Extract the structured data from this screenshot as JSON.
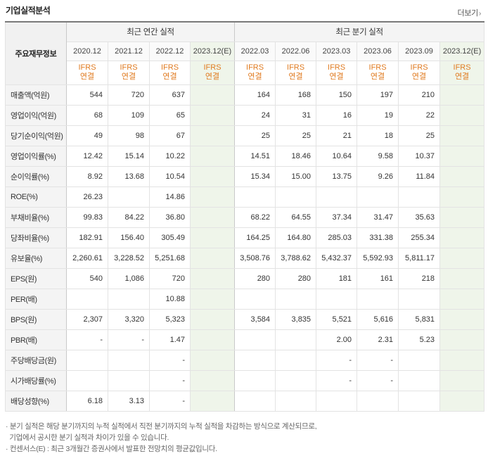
{
  "title": "기업실적분석",
  "more_label": "더보기",
  "header": {
    "label": "주요재무정보",
    "annual_group": "최근 연간 실적",
    "quarter_group": "최근 분기 실적",
    "annual_periods": [
      "2020.12",
      "2021.12",
      "2022.12",
      "2023.12(E)"
    ],
    "quarter_periods": [
      "2022.03",
      "2022.06",
      "2023.03",
      "2023.06",
      "2023.09",
      "2023.12(E)"
    ],
    "std_line1": "IFRS",
    "std_line2": "연결"
  },
  "rows": [
    {
      "name": "매출액(억원)",
      "annual": [
        "544",
        "720",
        "637",
        ""
      ],
      "quarter": [
        "164",
        "168",
        "150",
        "197",
        "210",
        ""
      ]
    },
    {
      "name": "영업이익(억원)",
      "annual": [
        "68",
        "109",
        "65",
        ""
      ],
      "quarter": [
        "24",
        "31",
        "16",
        "19",
        "22",
        ""
      ]
    },
    {
      "name": "당기순이익(억원)",
      "annual": [
        "49",
        "98",
        "67",
        ""
      ],
      "quarter": [
        "25",
        "25",
        "21",
        "18",
        "25",
        ""
      ]
    },
    {
      "name": "영업이익률(%)",
      "annual": [
        "12.42",
        "15.14",
        "10.22",
        ""
      ],
      "quarter": [
        "14.51",
        "18.46",
        "10.64",
        "9.58",
        "10.37",
        ""
      ]
    },
    {
      "name": "순이익률(%)",
      "annual": [
        "8.92",
        "13.68",
        "10.54",
        ""
      ],
      "quarter": [
        "15.34",
        "15.00",
        "13.75",
        "9.26",
        "11.84",
        ""
      ]
    },
    {
      "name": "ROE(%)",
      "annual": [
        "26.23",
        "",
        "14.86",
        ""
      ],
      "quarter": [
        "",
        "",
        "",
        "",
        "",
        ""
      ]
    },
    {
      "name": "부채비율(%)",
      "annual": [
        "99.83",
        "84.22",
        "36.80",
        ""
      ],
      "quarter": [
        "68.22",
        "64.55",
        "37.34",
        "31.47",
        "35.63",
        ""
      ]
    },
    {
      "name": "당좌비율(%)",
      "annual": [
        "182.91",
        "156.40",
        "305.49",
        ""
      ],
      "quarter": [
        "164.25",
        "164.80",
        "285.03",
        "331.38",
        "255.34",
        ""
      ]
    },
    {
      "name": "유보율(%)",
      "annual": [
        "2,260.61",
        "3,228.52",
        "5,251.68",
        ""
      ],
      "quarter": [
        "3,508.76",
        "3,788.62",
        "5,432.37",
        "5,592.93",
        "5,811.17",
        ""
      ]
    },
    {
      "name": "EPS(원)",
      "annual": [
        "540",
        "1,086",
        "720",
        ""
      ],
      "quarter": [
        "280",
        "280",
        "181",
        "161",
        "218",
        ""
      ]
    },
    {
      "name": "PER(배)",
      "annual": [
        "",
        "",
        "10.88",
        ""
      ],
      "quarter": [
        "",
        "",
        "",
        "",
        "",
        ""
      ]
    },
    {
      "name": "BPS(원)",
      "annual": [
        "2,307",
        "3,320",
        "5,323",
        ""
      ],
      "quarter": [
        "3,584",
        "3,835",
        "5,521",
        "5,616",
        "5,831",
        ""
      ]
    },
    {
      "name": "PBR(배)",
      "annual": [
        "-",
        "-",
        "1.47",
        ""
      ],
      "quarter": [
        "",
        "",
        "2.00",
        "2.31",
        "5.23",
        ""
      ]
    },
    {
      "name": "주당배당금(원)",
      "annual": [
        "",
        "",
        "-",
        ""
      ],
      "quarter": [
        "",
        "",
        "-",
        "-",
        "",
        ""
      ]
    },
    {
      "name": "시가배당률(%)",
      "annual": [
        "",
        "",
        "-",
        ""
      ],
      "quarter": [
        "",
        "",
        "-",
        "-",
        "",
        ""
      ]
    },
    {
      "name": "배당성향(%)",
      "annual": [
        "6.18",
        "3.13",
        "-",
        ""
      ],
      "quarter": [
        "",
        "",
        "",
        "",
        "",
        ""
      ]
    }
  ],
  "group_breaks": [
    3,
    6,
    9,
    13
  ],
  "notes": [
    "· 분기 실적은 해당 분기까지의 누적 실적에서 직전 분기까지의 누적 실적을 차감하는 방식으로 계산되므로,",
    "  기업에서 공시한 분기 실적과 차이가 있을 수 있습니다.",
    "· 컨센서스(E) : 최근 3개월간 증권사에서 발표한 전망치의 평균값입니다."
  ],
  "colors": {
    "standard": "#e07a1f",
    "estimate_bg": "#eff5ea",
    "estimate_mark": "#5aa02c"
  }
}
